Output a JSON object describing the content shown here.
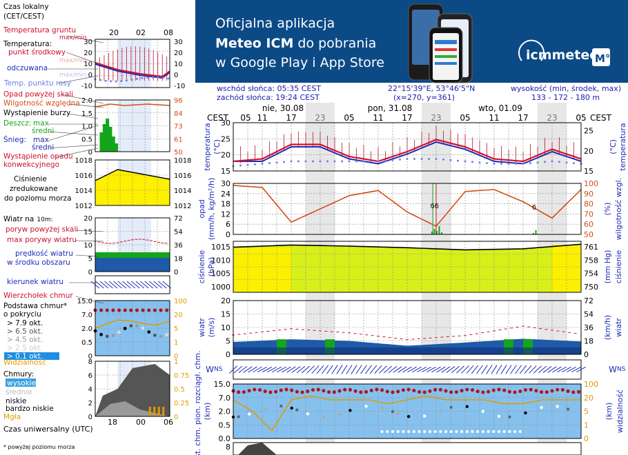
{
  "banner": {
    "line1": "Oficjalna aplikacja",
    "line2_bold": "Meteo ICM",
    "line2_rest": " do pobrania",
    "line3": "w Google Play i App Store",
    "brand": "icmmeteo",
    "badge": "M°",
    "bg": "#0c4a86"
  },
  "legend": {
    "time_local_1": "Czas lokalny",
    "time_local_2": "(CET/CEST)",
    "hours_top": [
      "20",
      "02",
      "08"
    ],
    "temp_ground_1": "Temperatura gruntu",
    "temp_ground_2": "max/min",
    "temperature": "Temperatura:",
    "mid_point": "punkt środkowy",
    "max_min": "max/min",
    "felt": "odczuwana",
    "max_min_2": "max/min",
    "dew": "Temp. punktu rosy",
    "precip_above": "Opad powyżej skali",
    "rel_humidity": "Wilgotność względna",
    "storm": "Wystąpienie burzy",
    "rain": "Deszcz:",
    "rain_max": "max",
    "rain_avg": "średni",
    "snow": "Śnieg:",
    "snow_max": "max",
    "snow_avg": "średni",
    "conv_1": "Wystąpienie opadu",
    "conv_2": "konwekcyjnego",
    "pressure_1": "Ciśnienie",
    "pressure_2": "zredukowane",
    "pressure_3": "do poziomu morza",
    "wind_at": "Wiatr na",
    "wind_height": "10m:",
    "gust_above": "poryw powyżej skali",
    "gust_max": "max porywy wiatru",
    "wind_speed_1": "prędkość wiatru",
    "wind_speed_2": "w środku obszaru",
    "wind_dir": "kierunek wiatru",
    "storm_top": "Wierzchołek chmur",
    "cloud_base_1": "Podstawa chmur*",
    "cloud_base_2": "o pokryciu",
    "okt": [
      "> 7.9 okt.",
      "> 6.5 okt.",
      "> 4.5 okt.",
      "> 2.5 okt.",
      "> 0.1 okt."
    ],
    "visibility": "Widzialność",
    "clouds": "Chmury:",
    "cloud_high": "wysokie",
    "cloud_mid": "średnie",
    "cloud_low": "niskie",
    "cloud_vlow": "bardzo niskie",
    "fog": "Mgła",
    "utc": "Czas uniwersalny (UTC)",
    "utc_hours": [
      "18",
      "00",
      "06"
    ],
    "footnote": "* powyżej poziomu morza"
  },
  "legend_axes": {
    "temp_left": [
      "30",
      "20",
      "10",
      "0",
      "-10"
    ],
    "temp_right": [
      "30",
      "20",
      "10",
      "0",
      "-10"
    ],
    "precip_left": [
      "2.0",
      "1.5",
      "1.0",
      "0.5",
      "0"
    ],
    "precip_right": [
      "96",
      "84",
      "73",
      "61",
      "50"
    ],
    "press_left": [
      "1018",
      "1016",
      "1014",
      "1012"
    ],
    "press_right": [
      "1018",
      "1016",
      "1014",
      "1012"
    ],
    "wind_left": [
      "20",
      "15",
      "10",
      "5",
      "0"
    ],
    "wind_right": [
      "72",
      "54",
      "36",
      "18",
      "0"
    ],
    "cb_left": [
      "15.0",
      "7.0",
      "2.0",
      "0.5",
      "0"
    ],
    "cb_right": [
      "100",
      "20",
      "5",
      "1",
      "0"
    ],
    "cl_left": [
      "8",
      "6",
      "4",
      "2",
      "0"
    ],
    "cl_right": [
      "1",
      "0.75",
      "0.5",
      "0.25",
      "0"
    ]
  },
  "info": {
    "sunrise": "wschód słońca: 05:35 CEST",
    "sunset": "zachód słońca: 19:24 CEST",
    "coords": "22°15'39\"E, 53°46'5\"N",
    "grid": "(x=270,  y=361)",
    "elev_label": "wysokość (min, środek, max)",
    "elev_values": "133 - 172 - 180 m"
  },
  "timeline": {
    "days": [
      "nie, 30.08",
      "pon, 31.08",
      "wto, 01.09"
    ],
    "hours": [
      "05",
      "11",
      "17",
      "23",
      "05",
      "11",
      "17",
      "23",
      "05",
      "11",
      "17",
      "23",
      "05"
    ],
    "tz": "CEST"
  },
  "panels": {
    "temp": {
      "left": "temperatura",
      "unit": "(°C)",
      "ticks_left": [
        "30",
        "25",
        "20",
        "15"
      ],
      "ticks_right": [
        "25",
        "20",
        "15"
      ]
    },
    "precip": {
      "left": "opad",
      "unit": "(mm/h, kg/m²/h)",
      "right": "wilgotność wzgl.",
      "right_unit": "(%)",
      "ticks_left": [
        "30",
        "24",
        "18",
        "12",
        "6",
        "0"
      ],
      "ticks_right": [
        "100",
        "90",
        "80",
        "70",
        "60",
        "50"
      ]
    },
    "pressure": {
      "left": "ciśnienie",
      "unit": "(hPa)",
      "right": "ciśnienie",
      "right_unit": "(mm Hg)",
      "ticks_left": [
        "1015",
        "1010",
        "1005",
        "1000"
      ],
      "ticks_right": [
        "761",
        "758",
        "754",
        "750"
      ]
    },
    "wind": {
      "left": "wiatr",
      "unit": "(m/s)",
      "right": "wiatr",
      "right_unit": "(km/h)",
      "ticks_left": [
        "20",
        "15",
        "10",
        "5",
        "0"
      ],
      "ticks_right": [
        "72",
        "54",
        "36",
        "18",
        "0"
      ]
    },
    "compass": {
      "label": "W E N S"
    },
    "cloudbase": {
      "left": "podst. chm. pion. rozciągł. chm.",
      "unit": "(km)",
      "right": "widzialność",
      "right_unit": "(km)",
      "ticks_left": [
        "15.0",
        "7.0",
        "2.0",
        "0.5",
        "0.0"
      ],
      "ticks_right": [
        "100",
        "20",
        "5",
        "1",
        "0"
      ]
    },
    "clouds": {
      "ticks_left": [
        "8"
      ]
    }
  },
  "colors": {
    "temp": "#d0102e",
    "felt": "#1d2bb5",
    "dew": "#6f7fe6",
    "humidity": "#d44c14",
    "pressure_fill": "#ffef00",
    "wind_dark": "#1e5aa8",
    "wind_green": "#13a51b",
    "sky": "#86c1ee",
    "night": "#d4d4d4"
  },
  "chart_data": [
    {
      "type": "line",
      "title": "temperatura",
      "ylabel": "(°C)",
      "x": [
        0,
        6,
        12,
        18,
        24,
        30,
        36,
        42,
        48,
        54,
        60,
        66,
        72
      ],
      "series": [
        {
          "values": [
            14,
            15,
            21,
            21,
            16,
            14,
            18,
            23,
            20,
            15,
            14,
            19,
            15
          ]
        },
        {
          "values": [
            14,
            14,
            20,
            20,
            15,
            13,
            17,
            22,
            19,
            14,
            13,
            18,
            14
          ]
        },
        {
          "values": [
            12,
            13,
            14,
            14,
            14,
            14,
            15,
            15,
            14,
            13,
            13,
            14,
            13
          ]
        }
      ],
      "ylim": [
        10,
        30
      ]
    },
    {
      "type": "line",
      "title": "opad",
      "ylabel": "(mm/h, kg/m²/h)",
      "x": [
        0,
        6,
        12,
        18,
        24,
        30,
        36,
        42,
        48,
        54,
        60,
        66,
        72
      ],
      "series": [
        {
          "values": [
            98,
            96,
            62,
            75,
            88,
            93,
            72,
            58,
            92,
            94,
            82,
            66,
            94
          ]
        }
      ],
      "ylim": [
        50,
        100
      ]
    },
    {
      "type": "area",
      "title": "ciśnienie",
      "ylabel": "(hPa)",
      "x": [
        0,
        12,
        24,
        36,
        48,
        60,
        72
      ],
      "series": [
        {
          "values": [
            1014.8,
            1015.6,
            1015.2,
            1014.6,
            1013.8,
            1014.2,
            1015.9
          ]
        }
      ],
      "ylim": [
        998,
        1017
      ]
    },
    {
      "type": "area",
      "title": "wiatr",
      "ylabel": "(m/s)",
      "x": [
        0,
        12,
        24,
        36,
        48,
        60,
        72
      ],
      "series": [
        {
          "values": [
            4.6,
            5.6,
            5.0,
            3.2,
            4.4,
            5.8,
            4.8
          ]
        },
        {
          "values": [
            7.2,
            9.5,
            8.0,
            5.5,
            7.0,
            10.5,
            7.5
          ]
        }
      ],
      "ylim": [
        0,
        20
      ]
    }
  ]
}
